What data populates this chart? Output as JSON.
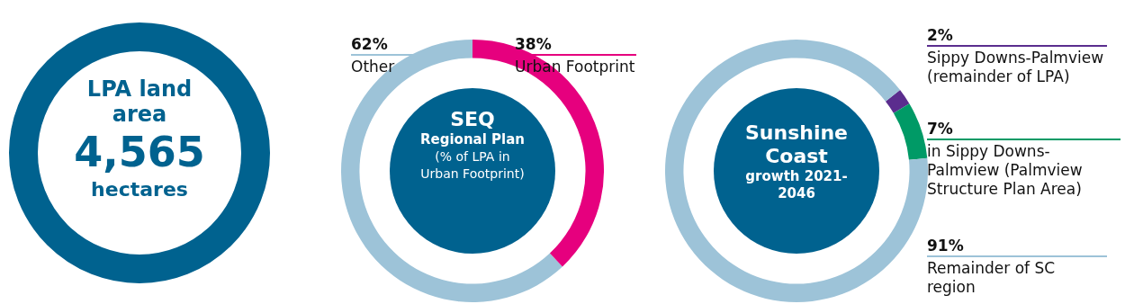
{
  "chart_data": [
    {
      "type": "other",
      "title": "LPA land area",
      "annotations": [
        "4,565",
        "hectares"
      ],
      "color": "#00628f"
    },
    {
      "type": "donut",
      "title": "SEQ",
      "subtitle": "Regional Plan",
      "annotations": [
        "(% of LPA in Urban Footprint)"
      ],
      "categories": [
        "Other",
        "Urban Footprint"
      ],
      "values": [
        62,
        38
      ],
      "colors": [
        "#9dc3d8",
        "#e6007e"
      ],
      "value_labels": [
        "62%",
        "38%"
      ]
    },
    {
      "type": "donut",
      "title": "Sunshine Coast",
      "subtitle": "growth 2021-2046",
      "categories": [
        "Sippy Downs-Palmview (remainder of LPA)",
        "in Sippy Downs-Palmview (Palmview Structure Plan Area)",
        "Remainder of SC region"
      ],
      "values": [
        2,
        7,
        91
      ],
      "colors": [
        "#5b2d8e",
        "#009a66",
        "#9dc3d8"
      ],
      "value_labels": [
        "2%",
        "7%",
        "91%"
      ]
    }
  ]
}
